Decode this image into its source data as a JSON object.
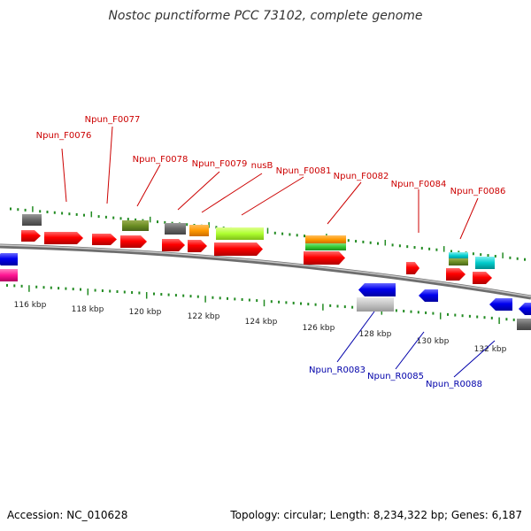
{
  "title": "Nostoc punctiforme PCC 73102, complete genome",
  "footer": {
    "accession": "Accession: NC_010628",
    "topology": "Topology: circular; Length: 8,234,322 bp; Genes: 6,187"
  },
  "scale_ticks": [
    "116 kbp",
    "118 kbp",
    "120 kbp",
    "122 kbp",
    "124 kbp",
    "126 kbp",
    "128 kbp",
    "130 kbp",
    "132 kbp"
  ],
  "forward_labels": [
    "Npun_F0076",
    "Npun_F0077",
    "Npun_F0078",
    "Npun_F0079",
    "nusB",
    "Npun_F0081",
    "Npun_F0082",
    "Npun_F0084",
    "Npun_F0086"
  ],
  "reverse_labels": [
    "Npun_R0083",
    "Npun_R0085",
    "Npun_R0088"
  ],
  "colors": {
    "forward_label": "#cc0000",
    "reverse_label": "#0000aa",
    "cds_forward": "#ff0000",
    "cds_reverse": "#0000ee",
    "tick": "#228b22",
    "backbone": "#808080"
  }
}
